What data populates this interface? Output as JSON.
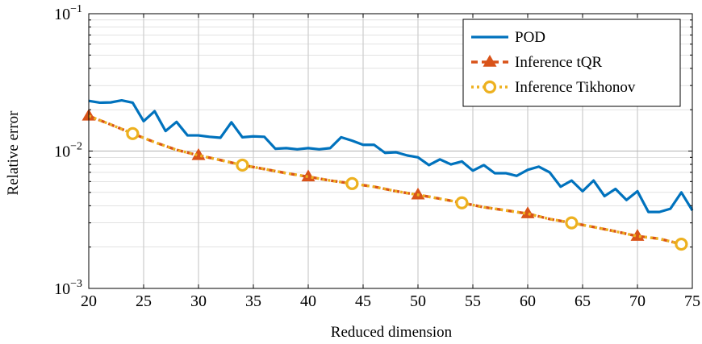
{
  "chart_data": {
    "type": "line",
    "title": "",
    "xlabel": "Reduced dimension",
    "ylabel": "Relative error",
    "xlim": [
      20,
      75
    ],
    "ylim": [
      0.001,
      0.1
    ],
    "yscale": "log",
    "grid": true,
    "legend_position": "top-right",
    "x_ticks": [
      20,
      25,
      30,
      35,
      40,
      45,
      50,
      55,
      60,
      65,
      70,
      75
    ],
    "x_tick_labels": [
      "20",
      "25",
      "30",
      "35",
      "40",
      "45",
      "50",
      "55",
      "60",
      "65",
      "70",
      "75"
    ],
    "y_ticks": [
      0.001,
      0.01,
      0.1
    ],
    "y_tick_labels": [
      {
        "base": "10",
        "exp": "−3"
      },
      {
        "base": "10",
        "exp": "−2"
      },
      {
        "base": "10",
        "exp": "−1"
      }
    ],
    "series": [
      {
        "name": "POD",
        "color": "#0072BD",
        "style": "solid",
        "marker": "none",
        "x": [
          20,
          21,
          22,
          23,
          24,
          25,
          26,
          27,
          28,
          29,
          30,
          31,
          32,
          33,
          34,
          35,
          36,
          37,
          38,
          39,
          40,
          41,
          42,
          43,
          44,
          45,
          46,
          47,
          48,
          49,
          50,
          51,
          52,
          53,
          54,
          55,
          56,
          57,
          58,
          59,
          60,
          61,
          62,
          63,
          64,
          65,
          66,
          67,
          68,
          69,
          70,
          71,
          72,
          73,
          74,
          75
        ],
        "y": [
          0.0232,
          0.0225,
          0.0226,
          0.0234,
          0.0225,
          0.0165,
          0.0195,
          0.014,
          0.0163,
          0.013,
          0.013,
          0.0127,
          0.0125,
          0.0162,
          0.0126,
          0.0128,
          0.0127,
          0.0104,
          0.0105,
          0.0103,
          0.0105,
          0.0103,
          0.0105,
          0.0126,
          0.0119,
          0.0111,
          0.0111,
          0.0097,
          0.0098,
          0.0093,
          0.009,
          0.0079,
          0.0087,
          0.008,
          0.0084,
          0.0072,
          0.0079,
          0.0069,
          0.0069,
          0.0066,
          0.0073,
          0.0077,
          0.007,
          0.0055,
          0.0061,
          0.0051,
          0.0061,
          0.0047,
          0.0053,
          0.0044,
          0.0051,
          0.0036,
          0.0036,
          0.0038,
          0.005,
          0.0037
        ]
      },
      {
        "name": "Inference tQR",
        "color": "#D95319",
        "style": "dashed",
        "marker": "triangle",
        "x": [
          20,
          22,
          24,
          26,
          28,
          30,
          32,
          34,
          36,
          38,
          40,
          42,
          44,
          46,
          48,
          50,
          52,
          54,
          56,
          58,
          60,
          62,
          64,
          66,
          68,
          70,
          72,
          74
        ],
        "y": [
          0.018,
          0.0156,
          0.0134,
          0.0116,
          0.0102,
          0.0093,
          0.0086,
          0.0079,
          0.0074,
          0.0069,
          0.0065,
          0.0061,
          0.0058,
          0.0055,
          0.0051,
          0.0048,
          0.0045,
          0.0042,
          0.0039,
          0.0037,
          0.0035,
          0.0032,
          0.003,
          0.0028,
          0.0026,
          0.0024,
          0.0023,
          0.0021
        ],
        "marker_x": [
          20,
          30,
          40,
          50,
          60,
          70
        ]
      },
      {
        "name": "Inference Tikhonov",
        "color": "#EDB120",
        "style": "dotted",
        "marker": "circle",
        "x": [
          20,
          22,
          24,
          26,
          28,
          30,
          32,
          34,
          36,
          38,
          40,
          42,
          44,
          46,
          48,
          50,
          52,
          54,
          56,
          58,
          60,
          62,
          64,
          66,
          68,
          70,
          72,
          74
        ],
        "y": [
          0.018,
          0.0156,
          0.0134,
          0.0116,
          0.0102,
          0.0093,
          0.0086,
          0.0079,
          0.0074,
          0.0069,
          0.0065,
          0.0061,
          0.0058,
          0.0055,
          0.0051,
          0.0048,
          0.0045,
          0.0042,
          0.0039,
          0.0037,
          0.0035,
          0.0032,
          0.003,
          0.0028,
          0.0026,
          0.0024,
          0.0023,
          0.0021
        ],
        "marker_x": [
          24,
          34,
          44,
          54,
          64,
          74
        ]
      }
    ]
  }
}
